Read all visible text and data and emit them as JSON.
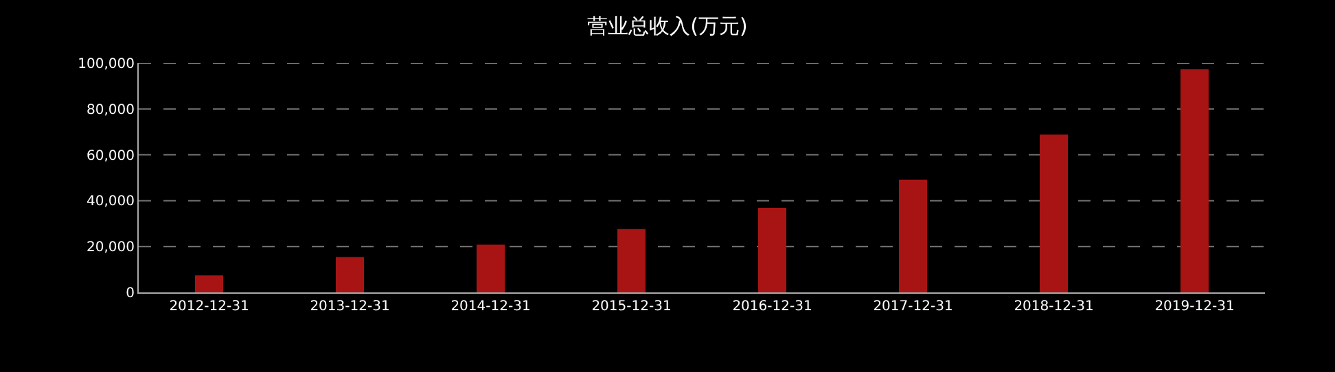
{
  "chart_data": {
    "type": "bar",
    "title": "营业总收入(万元)",
    "categories": [
      "2012-12-31",
      "2013-12-31",
      "2014-12-31",
      "2015-12-31",
      "2016-12-31",
      "2017-12-31",
      "2018-12-31",
      "2019-12-31"
    ],
    "series": [
      {
        "color": "#a81414",
        "values": [
          7400,
          15400,
          20800,
          27600,
          36800,
          49200,
          68900,
          97300
        ]
      }
    ],
    "ylim": [
      0,
      100000
    ],
    "yticks": [
      {
        "value": 0,
        "label": "0"
      },
      {
        "value": 20000,
        "label": "20,000"
      },
      {
        "value": 40000,
        "label": "40,000"
      },
      {
        "value": 60000,
        "label": "60,000"
      },
      {
        "value": 80000,
        "label": "80,000"
      },
      {
        "value": 100000,
        "label": "100,000"
      }
    ],
    "grid": "y"
  }
}
